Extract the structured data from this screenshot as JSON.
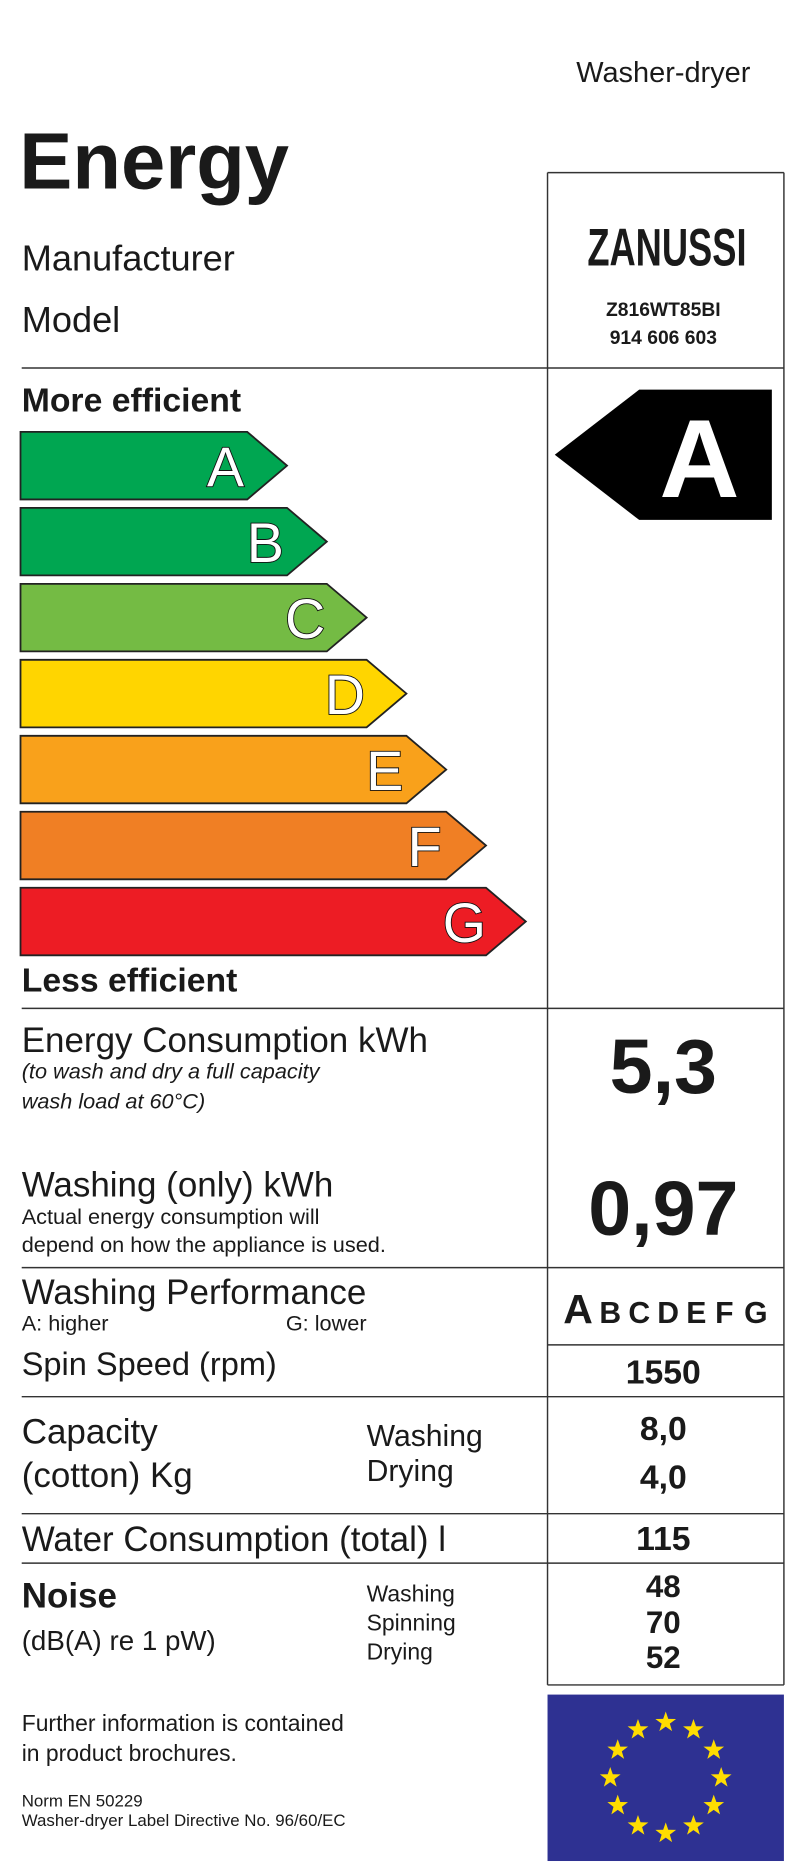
{
  "header": {
    "appliance": "Washer-dryer",
    "title": "Energy",
    "manufacturer_label": "Manufacturer",
    "model_label": "Model",
    "brand": "ZANUSSI",
    "model": "Z816WT85BI",
    "model_number": "914 606 603"
  },
  "scale": {
    "more": "More efficient",
    "less": "Less efficient",
    "classes": [
      "A",
      "B",
      "C",
      "D",
      "E",
      "F",
      "G"
    ],
    "rating": "A"
  },
  "energy": {
    "label": "Energy Consumption kWh",
    "note1": "(to wash and dry a full capacity",
    "note2": "wash load at 60°C)",
    "value": "5,3"
  },
  "washing_energy": {
    "label": "Washing (only) kWh",
    "note1": "Actual energy consumption will",
    "note2": "depend on how the appliance is used.",
    "value": "0,97"
  },
  "performance": {
    "label": "Washing Performance",
    "higher": "A:  higher",
    "lower": "G:  lower"
  },
  "spin": {
    "label": "Spin Speed (rpm)",
    "value": "1550"
  },
  "capacity": {
    "label1": "Capacity",
    "label2": "(cotton) Kg",
    "washing": "Washing",
    "drying": "Drying",
    "washing_value": "8,0",
    "drying_value": "4,0"
  },
  "water": {
    "label": "Water Consumption (total) l",
    "value": "115"
  },
  "noise": {
    "label": "Noise",
    "unit": "(dB(A) re 1 pW)",
    "washing": "Washing",
    "spinning": "Spinning",
    "drying": "Drying",
    "washing_value": "48",
    "spinning_value": "70",
    "drying_value": "52"
  },
  "footer": {
    "info1": "Further information is contained",
    "info2": "in product brochures.",
    "norm": "Norm EN 50229",
    "directive": "Washer-dryer Label Directive No. 96/60/EC"
  }
}
